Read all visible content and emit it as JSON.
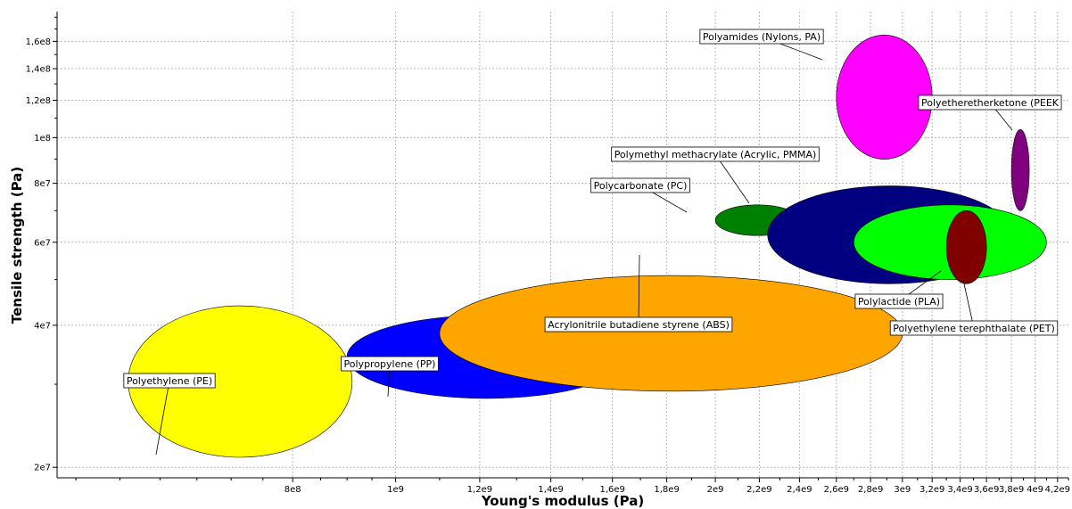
{
  "chart_data": {
    "type": "scatter",
    "title": "",
    "xlabel": "Young's modulus (Pa)",
    "ylabel": "Tensile strength (Pa)",
    "xscale": "log",
    "yscale": "log",
    "xlim": [
      480000000,
      4300000000
    ],
    "ylim": [
      19000000,
      185000000
    ],
    "grid": true,
    "legend": "none",
    "x_ticks": [
      {
        "value": 800000000,
        "label": "8e8"
      },
      {
        "value": 1000000000,
        "label": "1e9"
      },
      {
        "value": 1200000000,
        "label": "1,2e9"
      },
      {
        "value": 1400000000,
        "label": "1,4e9"
      },
      {
        "value": 1600000000,
        "label": "1,6e9"
      },
      {
        "value": 1800000000,
        "label": "1,8e9"
      },
      {
        "value": 2000000000,
        "label": "2e9"
      },
      {
        "value": 2200000000,
        "label": "2,2e9"
      },
      {
        "value": 2400000000,
        "label": "2,4e9"
      },
      {
        "value": 2600000000,
        "label": "2,6e9"
      },
      {
        "value": 2800000000,
        "label": "2,8e9"
      },
      {
        "value": 3000000000,
        "label": "3e9"
      },
      {
        "value": 3200000000,
        "label": "3,2e9"
      },
      {
        "value": 3400000000,
        "label": "3,4e9"
      },
      {
        "value": 3600000000,
        "label": "3,6e9"
      },
      {
        "value": 3800000000,
        "label": "3,8e9"
      },
      {
        "value": 4000000000,
        "label": "4e9"
      },
      {
        "value": 4200000000,
        "label": "4,2e9"
      }
    ],
    "y_ticks": [
      {
        "value": 20000000,
        "label": "2e7"
      },
      {
        "value": 40000000,
        "label": "4e7"
      },
      {
        "value": 60000000,
        "label": "6e7"
      },
      {
        "value": 80000000,
        "label": "8e7"
      },
      {
        "value": 100000000,
        "label": "1e8"
      },
      {
        "value": 120000000,
        "label": "1,2e8"
      },
      {
        "value": 140000000,
        "label": "1,4e8"
      },
      {
        "value": 160000000,
        "label": "1,6e8"
      }
    ],
    "materials": [
      {
        "name": "Polyethylene (PE)",
        "color": "#ffff00",
        "E_range": [
          560000000,
          910000000
        ],
        "UTS_range": [
          21000000,
          44000000
        ]
      },
      {
        "name": "Polypropylene (PP)",
        "color": "#0000ff",
        "E_range": [
          900000000,
          1650000000
        ],
        "UTS_range": [
          28000000,
          42000000
        ]
      },
      {
        "name": "Acrylonitrile butadiene styrene (ABS)",
        "color": "#ffa500",
        "E_range": [
          1100000000,
          3000000000
        ],
        "UTS_range": [
          29000000,
          51000000
        ]
      },
      {
        "name": "Polycarbonate (PC)",
        "color": "#008000",
        "E_range": [
          2000000000,
          2400000000
        ],
        "UTS_range": [
          62000000,
          72000000
        ]
      },
      {
        "name": "Polymethyl methacrylate (Acrylic, PMMA)",
        "color": "#000080",
        "E_range": [
          2240000000,
          3800000000
        ],
        "UTS_range": [
          49000000,
          79000000
        ]
      },
      {
        "name": "Polyethylene terephthalate (PET)",
        "color": "#00ff00",
        "E_range": [
          2700000000,
          4100000000
        ],
        "UTS_range": [
          50000000,
          72000000
        ]
      },
      {
        "name": "Polylactide (PLA)",
        "color": "#800000",
        "E_range": [
          3300000000,
          3600000000
        ],
        "UTS_range": [
          49000000,
          70000000
        ]
      },
      {
        "name": "Polyamides (Nylons, PA)",
        "color": "#ff00ff",
        "E_range": [
          2600000000,
          3200000000
        ],
        "UTS_range": [
          90000000,
          165000000
        ]
      },
      {
        "name": "Polyetheretherketone (PEEK",
        "color": "#800080",
        "E_range": [
          3800000000,
          3950000000
        ],
        "UTS_range": [
          70000000,
          104000000
        ]
      }
    ]
  }
}
